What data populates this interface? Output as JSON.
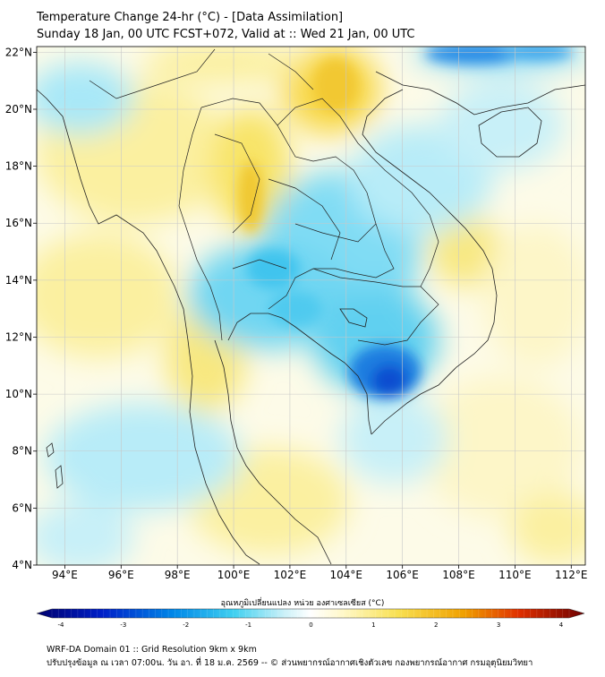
{
  "header": {
    "title": "Temperature Change 24-hr (°C) - [Data Assimilation]",
    "subtitle": "Sunday 18 Jan, 00 UTC FCST+072, Valid at :: Wed 21 Jan, 00 UTC"
  },
  "map": {
    "lat_range": [
      4,
      22.2
    ],
    "lon_range": [
      93,
      112.5
    ],
    "lat_ticks": [
      "4°N",
      "6°N",
      "8°N",
      "10°N",
      "12°N",
      "14°N",
      "16°N",
      "18°N",
      "20°N",
      "22°N"
    ],
    "lon_ticks": [
      "94°E",
      "96°E",
      "98°E",
      "100°E",
      "102°E",
      "104°E",
      "106°E",
      "108°E",
      "110°E",
      "112°E"
    ],
    "grid": true,
    "colors": {
      "cold_max": "#0000c8",
      "cool": "#40d0f0",
      "neutral": "#ffffff",
      "warm": "#f8e050",
      "hot_max": "#b00000"
    }
  },
  "colorbar": {
    "label": "อุณหภูมิเปลี่ยนแปลง หน่วย องศาเซลเซียส (°C)",
    "ticks": [
      "-4",
      "-3",
      "-2",
      "-1",
      "0",
      "1",
      "2",
      "3",
      "4"
    ],
    "range": [
      -4,
      4
    ]
  },
  "footer": {
    "line1": "WRF-DA Domain 01 :: Grid Resolution 9km x 9km",
    "line2": "ปรับปรุงข้อมูล ณ เวลา 07:00น. วัน อา. ที่ 18 ม.ค. 2569 -- © ส่วนพยากรณ์อากาศเชิงตัวเลข กองพยากรณ์อากาศ กรมอุตุนิยมวิทยา"
  }
}
